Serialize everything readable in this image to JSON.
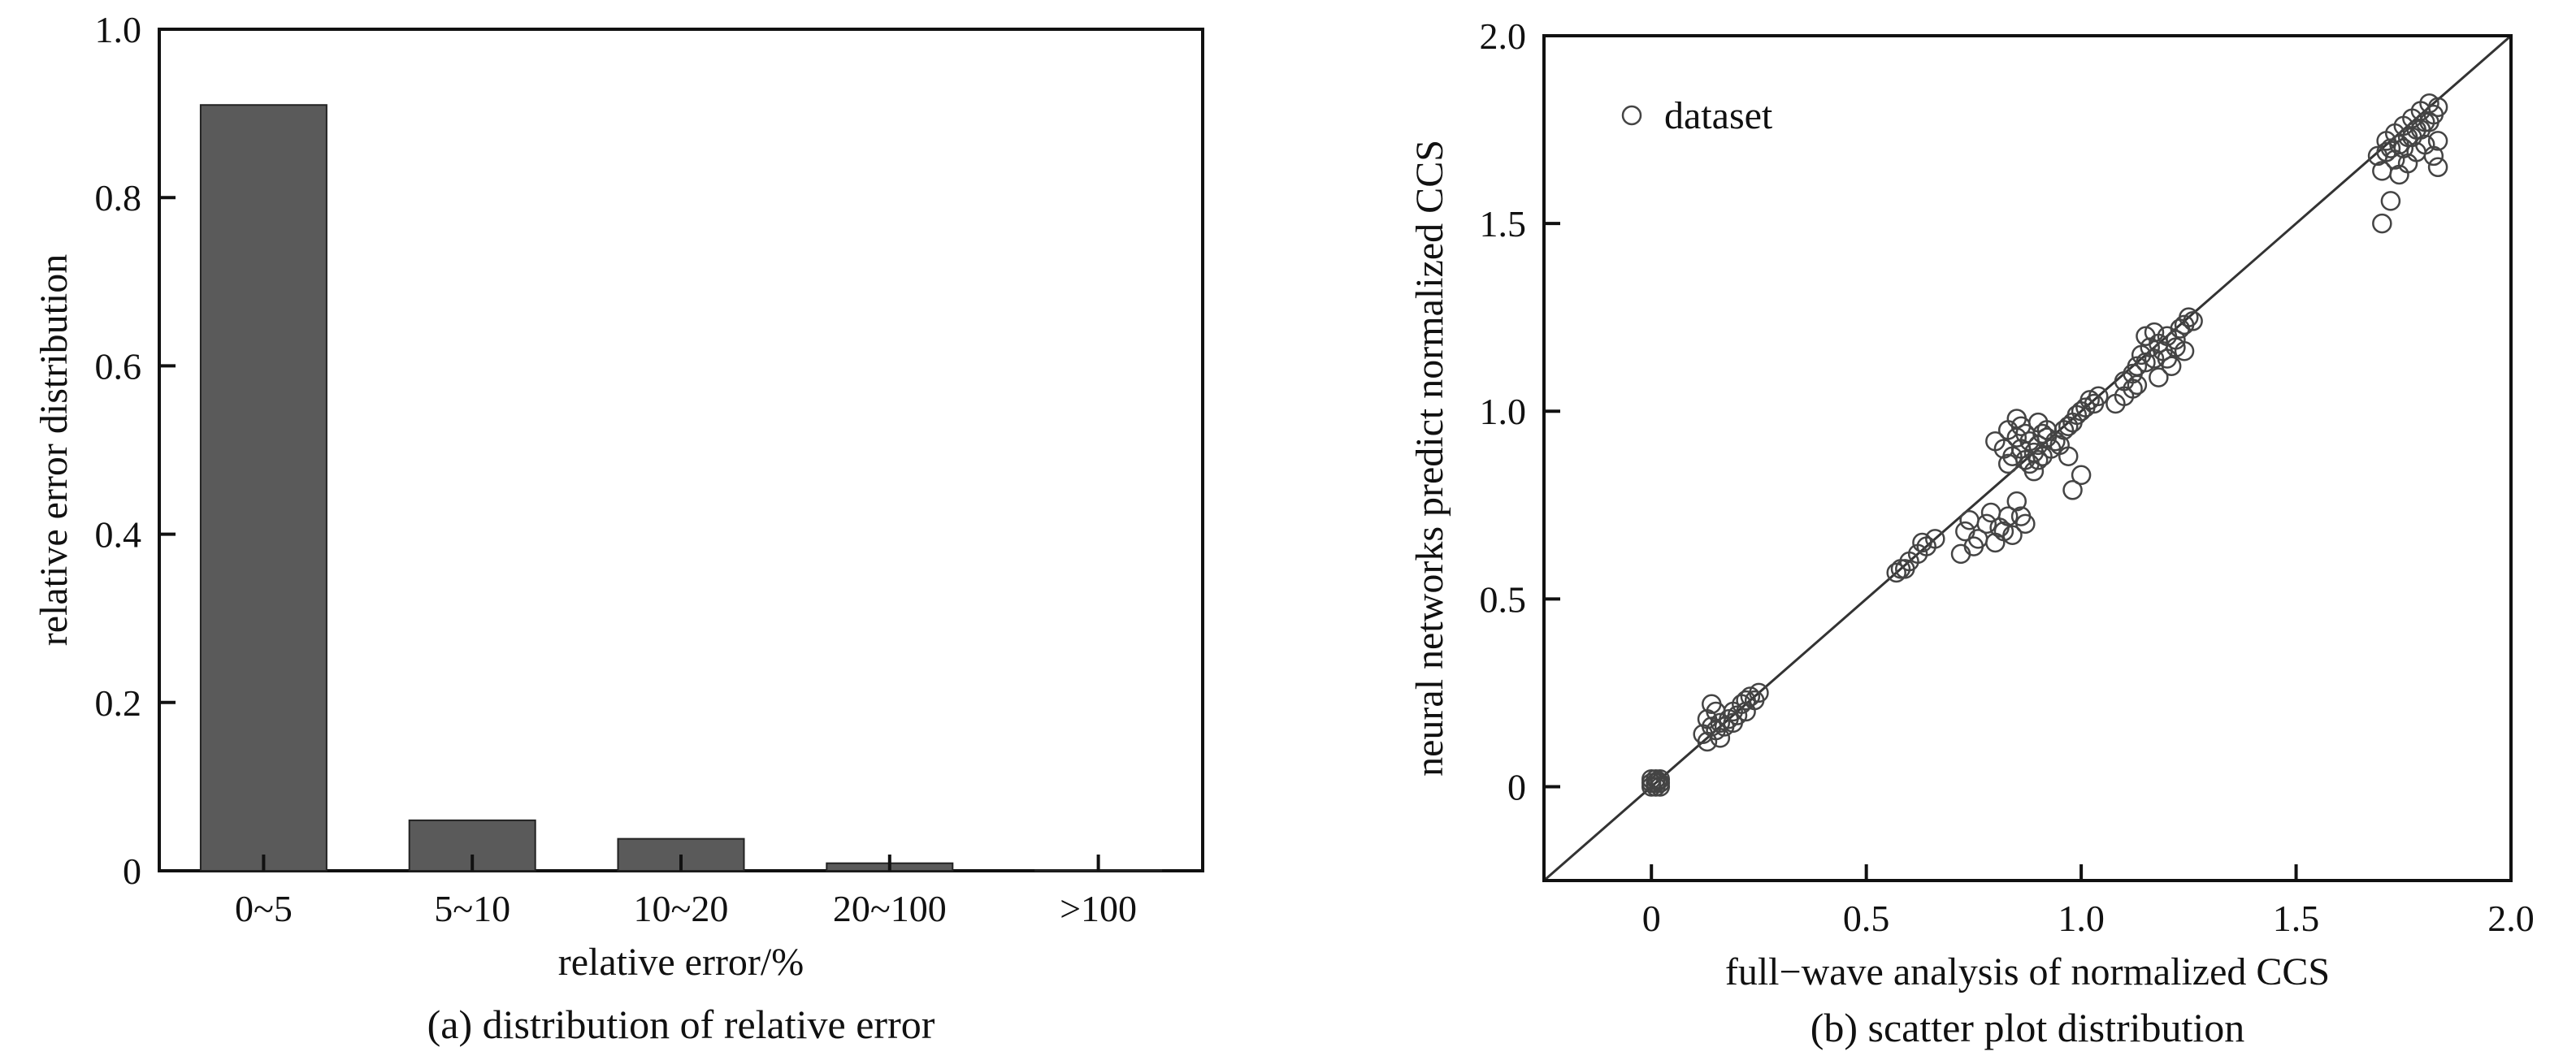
{
  "chart_data": [
    {
      "type": "bar",
      "caption": "(a) distribution of relative error",
      "xlabel": "relative error/%",
      "ylabel": "relative error distribution",
      "categories": [
        "0~5",
        "5~10",
        "10~20",
        "20~100",
        ">100"
      ],
      "values": [
        0.91,
        0.06,
        0.038,
        0.009,
        0.001
      ],
      "ylim": [
        0,
        1.0
      ],
      "yticks": [
        0,
        0.2,
        0.4,
        0.6,
        0.8,
        1.0
      ],
      "ytick_labels": [
        "0",
        "0.2",
        "0.4",
        "0.6",
        "0.8",
        "1.0"
      ],
      "bar_color": "#5a5a5a",
      "grid": false
    },
    {
      "type": "scatter",
      "caption": "(b) scatter plot distribution",
      "xlabel": "full−wave analysis of normalized CCS",
      "ylabel": "neural networks predict normalized CCS",
      "xlim": [
        -0.25,
        2.0
      ],
      "ylim": [
        -0.25,
        2.0
      ],
      "xticks": [
        0,
        0.5,
        1.0,
        1.5,
        2.0
      ],
      "xtick_labels": [
        "0",
        "0.5",
        "1.0",
        "1.5",
        "2.0"
      ],
      "yticks": [
        0,
        0.5,
        1.0,
        1.5,
        2.0
      ],
      "ytick_labels": [
        "0",
        "0.5",
        "1.0",
        "1.5",
        "2.0"
      ],
      "legend": {
        "label": "dataset",
        "placement": "top-left"
      },
      "reference_line": {
        "from": [
          -0.25,
          -0.25
        ],
        "to": [
          2.0,
          2.0
        ]
      },
      "marker": "open-circle",
      "grid": false,
      "series": [
        {
          "name": "dataset",
          "points": [
            [
              0.0,
              0.0
            ],
            [
              0.01,
              0.01
            ],
            [
              0.02,
              0.02
            ],
            [
              0.0,
              0.01
            ],
            [
              0.01,
              0.0
            ],
            [
              0.02,
              0.01
            ],
            [
              0.0,
              0.02
            ],
            [
              0.01,
              0.02
            ],
            [
              0.02,
              0.0
            ],
            [
              0.015,
              0.015
            ],
            [
              0.12,
              0.14
            ],
            [
              0.13,
              0.12
            ],
            [
              0.14,
              0.16
            ],
            [
              0.15,
              0.15
            ],
            [
              0.16,
              0.17
            ],
            [
              0.17,
              0.16
            ],
            [
              0.18,
              0.18
            ],
            [
              0.19,
              0.2
            ],
            [
              0.2,
              0.19
            ],
            [
              0.21,
              0.22
            ],
            [
              0.22,
              0.2
            ],
            [
              0.23,
              0.24
            ],
            [
              0.24,
              0.23
            ],
            [
              0.25,
              0.25
            ],
            [
              0.14,
              0.22
            ],
            [
              0.13,
              0.18
            ],
            [
              0.16,
              0.13
            ],
            [
              0.19,
              0.17
            ],
            [
              0.15,
              0.2
            ],
            [
              0.22,
              0.23
            ],
            [
              0.57,
              0.57
            ],
            [
              0.58,
              0.58
            ],
            [
              0.6,
              0.6
            ],
            [
              0.62,
              0.62
            ],
            [
              0.63,
              0.65
            ],
            [
              0.64,
              0.64
            ],
            [
              0.66,
              0.66
            ],
            [
              0.59,
              0.58
            ],
            [
              0.72,
              0.62
            ],
            [
              0.73,
              0.68
            ],
            [
              0.74,
              0.71
            ],
            [
              0.76,
              0.66
            ],
            [
              0.78,
              0.7
            ],
            [
              0.8,
              0.65
            ],
            [
              0.82,
              0.68
            ],
            [
              0.83,
              0.72
            ],
            [
              0.85,
              0.76
            ],
            [
              0.87,
              0.7
            ],
            [
              0.75,
              0.64
            ],
            [
              0.79,
              0.73
            ],
            [
              0.81,
              0.69
            ],
            [
              0.84,
              0.67
            ],
            [
              0.86,
              0.72
            ],
            [
              0.8,
              0.92
            ],
            [
              0.82,
              0.9
            ],
            [
              0.83,
              0.95
            ],
            [
              0.84,
              0.88
            ],
            [
              0.85,
              0.93
            ],
            [
              0.86,
              0.9
            ],
            [
              0.87,
              0.87
            ],
            [
              0.88,
              0.92
            ],
            [
              0.89,
              0.89
            ],
            [
              0.9,
              0.91
            ],
            [
              0.91,
              0.88
            ],
            [
              0.92,
              0.93
            ],
            [
              0.93,
              0.9
            ],
            [
              0.85,
              0.98
            ],
            [
              0.88,
              0.86
            ],
            [
              0.87,
              0.94
            ],
            [
              0.9,
              0.87
            ],
            [
              0.92,
              0.95
            ],
            [
              0.83,
              0.86
            ],
            [
              0.89,
              0.84
            ],
            [
              0.86,
              0.96
            ],
            [
              0.91,
              0.94
            ],
            [
              0.94,
              0.92
            ],
            [
              0.95,
              0.91
            ],
            [
              0.9,
              0.97
            ],
            [
              0.96,
              0.95
            ],
            [
              0.97,
              0.96
            ],
            [
              0.98,
              0.97
            ],
            [
              0.99,
              0.99
            ],
            [
              1.0,
              1.0
            ],
            [
              1.01,
              1.01
            ],
            [
              1.02,
              1.03
            ],
            [
              1.03,
              1.02
            ],
            [
              1.04,
              1.04
            ],
            [
              0.98,
              0.79
            ],
            [
              1.0,
              0.83
            ],
            [
              0.97,
              0.88
            ],
            [
              1.08,
              1.02
            ],
            [
              1.1,
              1.08
            ],
            [
              1.1,
              1.04
            ],
            [
              1.12,
              1.1
            ],
            [
              1.13,
              1.12
            ],
            [
              1.14,
              1.15
            ],
            [
              1.15,
              1.13
            ],
            [
              1.16,
              1.17
            ],
            [
              1.17,
              1.14
            ],
            [
              1.18,
              1.18
            ],
            [
              1.19,
              1.16
            ],
            [
              1.2,
              1.2
            ],
            [
              1.21,
              1.12
            ],
            [
              1.22,
              1.19
            ],
            [
              1.23,
              1.22
            ],
            [
              1.24,
              1.23
            ],
            [
              1.25,
              1.25
            ],
            [
              1.26,
              1.24
            ],
            [
              1.12,
              1.06
            ],
            [
              1.15,
              1.2
            ],
            [
              1.18,
              1.09
            ],
            [
              1.2,
              1.14
            ],
            [
              1.22,
              1.17
            ],
            [
              1.24,
              1.16
            ],
            [
              1.13,
              1.07
            ],
            [
              1.17,
              1.21
            ],
            [
              1.69,
              1.68
            ],
            [
              1.7,
              1.64
            ],
            [
              1.71,
              1.72
            ],
            [
              1.72,
              1.7
            ],
            [
              1.73,
              1.74
            ],
            [
              1.74,
              1.71
            ],
            [
              1.75,
              1.76
            ],
            [
              1.76,
              1.73
            ],
            [
              1.77,
              1.78
            ],
            [
              1.78,
              1.75
            ],
            [
              1.79,
              1.8
            ],
            [
              1.8,
              1.77
            ],
            [
              1.81,
              1.82
            ],
            [
              1.82,
              1.79
            ],
            [
              1.83,
              1.72
            ],
            [
              1.83,
              1.65
            ],
            [
              1.82,
              1.68
            ],
            [
              1.8,
              1.71
            ],
            [
              1.78,
              1.69
            ],
            [
              1.76,
              1.66
            ],
            [
              1.74,
              1.63
            ],
            [
              1.72,
              1.56
            ],
            [
              1.7,
              1.5
            ],
            [
              1.71,
              1.69
            ],
            [
              1.73,
              1.67
            ],
            [
              1.75,
              1.7
            ],
            [
              1.77,
              1.73
            ],
            [
              1.79,
              1.75
            ],
            [
              1.81,
              1.77
            ],
            [
              1.83,
              1.81
            ]
          ]
        }
      ]
    }
  ]
}
